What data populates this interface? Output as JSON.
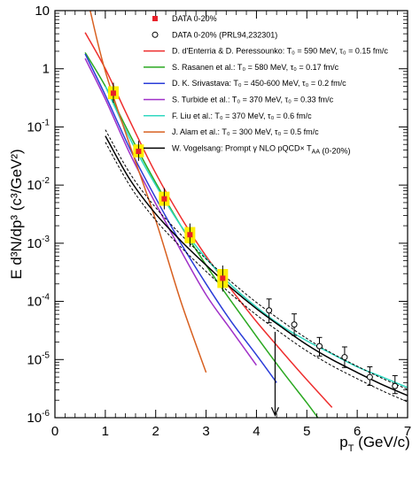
{
  "chart_data": {
    "type": "line",
    "xlabel": "p_T (GeV/c)",
    "ylabel": "E d³N/dp³ (c³/GeV²)",
    "xlim": [
      0,
      7
    ],
    "ylim": [
      1e-06,
      10
    ],
    "yscale": "log",
    "xticks": [
      "0",
      "1",
      "2",
      "3",
      "4",
      "5",
      "6",
      "7"
    ],
    "yticks": [
      {
        "value": 1e-06,
        "base": "10",
        "exp": "-6"
      },
      {
        "value": 1e-05,
        "base": "10",
        "exp": "-5"
      },
      {
        "value": 0.0001,
        "base": "10",
        "exp": "-4"
      },
      {
        "value": 0.001,
        "base": "10",
        "exp": "-3"
      },
      {
        "value": 0.01,
        "base": "10",
        "exp": "-2"
      },
      {
        "value": 0.1,
        "base": "10",
        "exp": "-1"
      },
      {
        "value": 1,
        "base": "1",
        "exp": ""
      },
      {
        "value": 10,
        "base": "10",
        "exp": ""
      }
    ],
    "legend_position": "top-right",
    "data_series": [
      {
        "name": "DATA 0-20%",
        "marker": "filled-square",
        "color": "#e8202a",
        "box_color": "#ffee00",
        "x": [
          1.16,
          1.66,
          2.17,
          2.68,
          3.33
        ],
        "y": [
          0.38,
          0.038,
          0.0058,
          0.0014,
          0.00025
        ],
        "yerr_low": [
          0.3,
          0.03,
          0.0044,
          0.001,
          0.00017
        ],
        "yerr_high": [
          0.5,
          0.05,
          0.0077,
          0.0019,
          0.00036
        ]
      },
      {
        "name": "DATA 0-20% (PRL94,232301)",
        "marker": "open-circle",
        "color": "#000000",
        "x": [
          4.25,
          4.75,
          5.25,
          5.75,
          6.25,
          6.75
        ],
        "y": [
          7e-05,
          4e-05,
          1.7e-05,
          1.1e-05,
          5e-06,
          3.5e-06
        ],
        "yerr_low": [
          4.3e-05,
          2.6e-05,
          1.15e-05,
          7.3e-06,
          3.6e-06,
          2.6e-06
        ],
        "yerr_high": [
          0.00011,
          6.1e-05,
          2.4e-05,
          1.65e-05,
          7.5e-06,
          5.3e-06
        ]
      }
    ],
    "upper_limit": {
      "x": 4.37,
      "y_from": 3e-05,
      "y_to": 1.1e-06
    },
    "series": [
      {
        "name": "D. d'Enterria & D. Peressounko: T₀ = 590 MeV, τ₀ = 0.15 fm/c",
        "color": "#ee2d2d",
        "x": [
          0.6,
          1.0,
          1.5,
          2.0,
          2.5,
          3.0,
          3.5,
          4.0,
          4.5,
          5.0,
          5.5
        ],
        "y": [
          4.2,
          1.0,
          0.12,
          0.016,
          0.0028,
          0.0006,
          0.00016,
          4.5e-05,
          1.4e-05,
          4.5e-06,
          1.5e-06
        ]
      },
      {
        "name": "S. Rasanen et al.: T₀ = 580 MeV, τ₀ = 0.17 fm/c",
        "color": "#2aa820",
        "x": [
          0.6,
          1.0,
          1.5,
          2.0,
          2.5,
          3.0,
          3.5,
          4.0,
          4.5,
          5.0,
          5.3
        ],
        "y": [
          1.9,
          0.5,
          0.07,
          0.011,
          0.002,
          0.00042,
          0.0001,
          2.5e-05,
          6.5e-06,
          1.8e-06,
          8e-07
        ]
      },
      {
        "name": "D. K. Srivastava: T₀ = 450-600 MeV, τ₀ = 0.2 fm/c",
        "color": "#2a3cd8",
        "x": [
          0.6,
          1.0,
          1.5,
          2.0,
          2.5,
          3.0,
          3.5,
          4.0,
          4.4
        ],
        "y": [
          1.8,
          0.35,
          0.04,
          0.006,
          0.001,
          0.0002,
          4.5e-05,
          1.2e-05,
          4e-06
        ]
      },
      {
        "name": "S. Turbide et al.: T₀ = 370 MeV, τ₀ = 0.33 fm/c",
        "color": "#a030c8",
        "x": [
          0.6,
          1.0,
          1.5,
          2.0,
          2.5,
          3.0,
          3.5,
          4.0
        ],
        "y": [
          1.5,
          0.3,
          0.033,
          0.0048,
          0.00075,
          0.00013,
          3.2e-05,
          8e-06
        ]
      },
      {
        "name": "F. Liu et al.: T₀ = 370 MeV, τ₀ = 0.6 fm/c",
        "color": "#30d8c0",
        "x": [
          1.0,
          1.5,
          2.0,
          2.5,
          3.0,
          3.5,
          4.0,
          4.5,
          5.0,
          5.5,
          6.0,
          6.5,
          7.0
        ],
        "y": [
          0.5,
          0.06,
          0.01,
          0.002,
          0.00055,
          0.00019,
          8e-05,
          3.8e-05,
          2.1e-05,
          1.25e-05,
          7.5e-06,
          5e-06,
          3.3e-06
        ]
      },
      {
        "name": "J. Alam et al.: T₀ = 300 MeV, τ₀ = 0.5 fm/c",
        "color": "#d86020",
        "x": [
          0.7,
          1.0,
          1.5,
          2.0,
          2.5,
          3.0
        ],
        "y": [
          10,
          0.9,
          0.045,
          0.0025,
          0.0001,
          6e-06
        ]
      },
      {
        "name": "W. Vogelsang: Prompt γ NLO pQCD× T_AA (0-20%)",
        "color": "#000000",
        "x": [
          1.0,
          1.5,
          2.0,
          2.5,
          3.0,
          3.5,
          4.0,
          4.5,
          5.0,
          5.5,
          6.0,
          6.5,
          7.0
        ],
        "y": [
          0.07,
          0.012,
          0.0032,
          0.0011,
          0.00042,
          0.00017,
          7.5e-05,
          3.6e-05,
          1.8e-05,
          1e-05,
          6e-06,
          3.7e-06,
          2.4e-06
        ]
      }
    ]
  }
}
